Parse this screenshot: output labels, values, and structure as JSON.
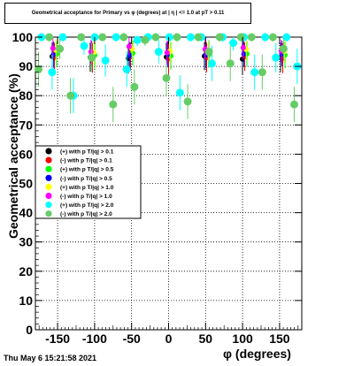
{
  "title": "Geometrical acceptance for Primary vs φ (degrees) at | η | <= 1.0 at pT > 0.11",
  "timestamp": "Thu May  6 15:21:58 2021",
  "chart_data": {
    "type": "scatter",
    "xlabel": "φ (degrees)",
    "ylabel": "Geometrical acceptance (%)",
    "xlim": [
      -180,
      180
    ],
    "ylim": [
      0,
      100
    ],
    "xticks": [
      -150,
      -100,
      -50,
      0,
      50,
      100,
      150
    ],
    "yticks": [
      0,
      10,
      20,
      30,
      40,
      50,
      60,
      70,
      80,
      90,
      100
    ],
    "grid": true,
    "legend_position": "left-middle",
    "series": [
      {
        "name": "(+) with p T/|q| > 0.1",
        "color": "#000000",
        "values": [
          93.4,
          93.1,
          92.7,
          93.2,
          93.5,
          92.5,
          93.0
        ]
      },
      {
        "name": "(-) with p T/|q| > 0.1",
        "color": "#ff0000",
        "values": [
          93.1,
          92.9,
          93.4,
          92.6,
          93.0,
          93.3,
          92.8
        ]
      },
      {
        "name": "(+) with p T/|q| > 0.5",
        "color": "#00ff00",
        "values": [
          94.2,
          93.8,
          94.5,
          93.6,
          94.0,
          94.3,
          93.9
        ]
      },
      {
        "name": "(-) with p T/|q| > 0.5",
        "color": "#0000ff",
        "values": [
          94.0,
          94.4,
          93.7,
          94.1,
          93.9,
          94.2,
          94.3
        ]
      },
      {
        "name": "(+) with p T/|q| > 1.0",
        "color": "#ffff00",
        "values": [
          95.5,
          94.8,
          96.0,
          95.2,
          94.6,
          95.8,
          95.1
        ]
      },
      {
        "name": "(-) with p T/|q| > 1.0",
        "color": "#ff00ff",
        "values": [
          96.2,
          95.0,
          96.8,
          94.7,
          95.9,
          96.4,
          95.3
        ]
      },
      {
        "name": "(+) with p T/|q| > 2.0",
        "color": "#00ffff",
        "values": [
          100,
          88,
          100,
          80,
          97,
          100,
          92,
          100,
          89,
          99,
          100,
          95,
          100,
          81,
          100,
          100,
          91,
          100,
          98,
          100,
          88,
          100,
          93,
          100,
          90
        ]
      },
      {
        "name": "(-) with p T/|q| > 2.0",
        "color": "#66cc66",
        "values": [
          89,
          100,
          96,
          80,
          100,
          93,
          100,
          77,
          100,
          83,
          99,
          100,
          86,
          100,
          78,
          100,
          95,
          100,
          91,
          100,
          100,
          88,
          100,
          96,
          77
        ]
      }
    ]
  }
}
